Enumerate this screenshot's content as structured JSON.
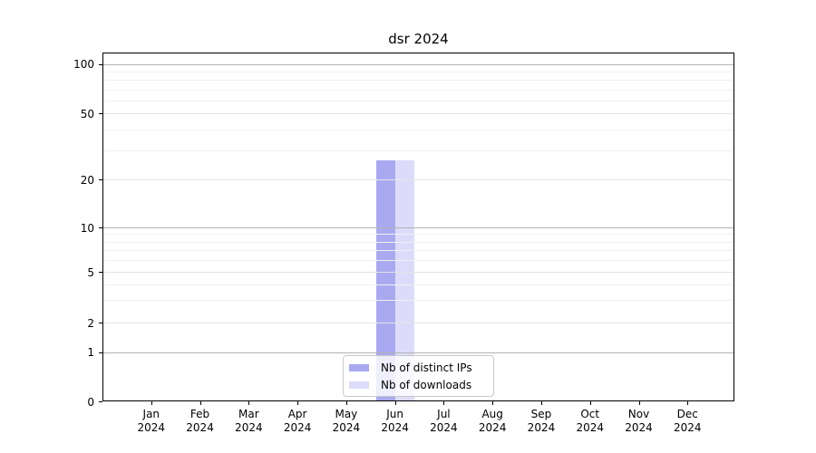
{
  "chart_data": {
    "type": "bar",
    "title": "dsr 2024",
    "categories": [
      {
        "month": "Jan",
        "year": "2024"
      },
      {
        "month": "Feb",
        "year": "2024"
      },
      {
        "month": "Mar",
        "year": "2024"
      },
      {
        "month": "Apr",
        "year": "2024"
      },
      {
        "month": "May",
        "year": "2024"
      },
      {
        "month": "Jun",
        "year": "2024"
      },
      {
        "month": "Jul",
        "year": "2024"
      },
      {
        "month": "Aug",
        "year": "2024"
      },
      {
        "month": "Sep",
        "year": "2024"
      },
      {
        "month": "Oct",
        "year": "2024"
      },
      {
        "month": "Nov",
        "year": "2024"
      },
      {
        "month": "Dec",
        "year": "2024"
      }
    ],
    "series": [
      {
        "name": "Nb of distinct IPs",
        "color": "#a9a9f2",
        "values": [
          0,
          0,
          0,
          0,
          0,
          26,
          0,
          0,
          0,
          0,
          0,
          0
        ]
      },
      {
        "name": "Nb of downloads",
        "color": "#dcdcfa",
        "values": [
          0,
          0,
          0,
          0,
          0,
          26,
          0,
          0,
          0,
          0,
          0,
          0
        ]
      }
    ],
    "y_axis": {
      "tick_labels": [
        0,
        1,
        2,
        5,
        10,
        20,
        50,
        100
      ],
      "scale": "symlog",
      "grid": true
    },
    "legend": {
      "position": "bottom-center"
    }
  },
  "colors": {
    "background": "#ffffff",
    "spine": "#000000",
    "grid_major": "#b3b3b3",
    "grid_mid": "#e3e3e3",
    "grid_minor": "#f0f0f0",
    "legend_border": "#c9c9c9",
    "text": "#000000"
  }
}
